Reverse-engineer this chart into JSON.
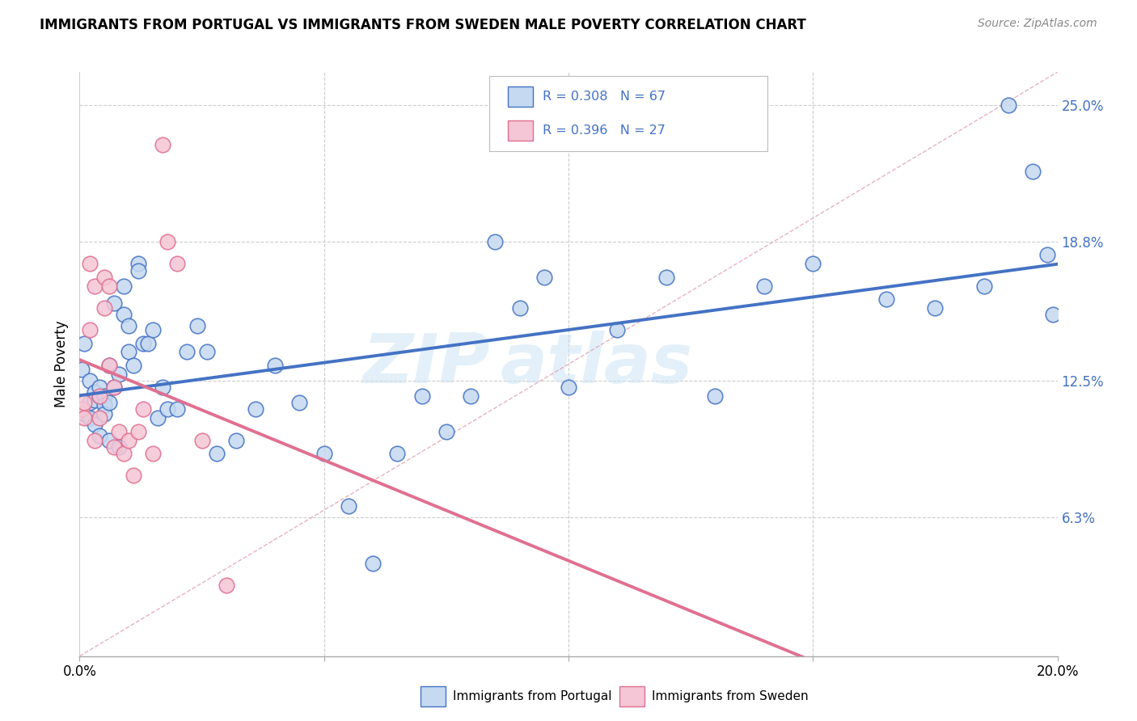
{
  "title": "IMMIGRANTS FROM PORTUGAL VS IMMIGRANTS FROM SWEDEN MALE POVERTY CORRELATION CHART",
  "source": "Source: ZipAtlas.com",
  "ylabel": "Male Poverty",
  "xlim": [
    0.0,
    0.2
  ],
  "ylim": [
    0.0,
    0.265
  ],
  "ytick_labels": [
    "6.3%",
    "12.5%",
    "18.8%",
    "25.0%"
  ],
  "ytick_positions": [
    0.063,
    0.125,
    0.188,
    0.25
  ],
  "legend_r1": "0.308",
  "legend_n1": "67",
  "legend_r2": "0.396",
  "legend_n2": "27",
  "legend_label1": "Immigrants from Portugal",
  "legend_label2": "Immigrants from Sweden",
  "color_portugal": "#c5d9f0",
  "color_sweden": "#f5c6d5",
  "color_line_portugal": "#4472c4",
  "color_line_sweden": "#e07090",
  "color_text_blue": "#4472c4",
  "watermark_zip": "ZIP",
  "watermark_atlas": "atlas",
  "scatter_portugal_x": [
    0.0005,
    0.001,
    0.001,
    0.002,
    0.002,
    0.002,
    0.003,
    0.003,
    0.003,
    0.004,
    0.004,
    0.004,
    0.005,
    0.005,
    0.005,
    0.006,
    0.006,
    0.006,
    0.007,
    0.007,
    0.008,
    0.008,
    0.009,
    0.009,
    0.01,
    0.01,
    0.011,
    0.012,
    0.012,
    0.013,
    0.014,
    0.015,
    0.016,
    0.017,
    0.018,
    0.02,
    0.022,
    0.024,
    0.026,
    0.028,
    0.032,
    0.036,
    0.04,
    0.045,
    0.05,
    0.055,
    0.06,
    0.065,
    0.07,
    0.075,
    0.08,
    0.085,
    0.09,
    0.095,
    0.1,
    0.11,
    0.12,
    0.13,
    0.14,
    0.15,
    0.165,
    0.175,
    0.185,
    0.19,
    0.195,
    0.198,
    0.199
  ],
  "scatter_portugal_y": [
    0.13,
    0.142,
    0.11,
    0.125,
    0.115,
    0.108,
    0.12,
    0.116,
    0.105,
    0.118,
    0.122,
    0.1,
    0.118,
    0.114,
    0.11,
    0.132,
    0.115,
    0.098,
    0.16,
    0.122,
    0.095,
    0.128,
    0.168,
    0.155,
    0.138,
    0.15,
    0.132,
    0.178,
    0.175,
    0.142,
    0.142,
    0.148,
    0.108,
    0.122,
    0.112,
    0.112,
    0.138,
    0.15,
    0.138,
    0.092,
    0.098,
    0.112,
    0.132,
    0.115,
    0.092,
    0.068,
    0.042,
    0.092,
    0.118,
    0.102,
    0.118,
    0.188,
    0.158,
    0.172,
    0.122,
    0.148,
    0.172,
    0.118,
    0.168,
    0.178,
    0.162,
    0.158,
    0.168,
    0.25,
    0.22,
    0.182,
    0.155
  ],
  "scatter_sweden_x": [
    0.0005,
    0.001,
    0.001,
    0.002,
    0.002,
    0.003,
    0.003,
    0.004,
    0.004,
    0.005,
    0.005,
    0.006,
    0.006,
    0.007,
    0.007,
    0.008,
    0.009,
    0.01,
    0.011,
    0.012,
    0.013,
    0.015,
    0.017,
    0.018,
    0.02,
    0.025,
    0.03
  ],
  "scatter_sweden_y": [
    0.112,
    0.108,
    0.115,
    0.178,
    0.148,
    0.168,
    0.098,
    0.118,
    0.108,
    0.172,
    0.158,
    0.168,
    0.132,
    0.122,
    0.095,
    0.102,
    0.092,
    0.098,
    0.082,
    0.102,
    0.112,
    0.092,
    0.232,
    0.188,
    0.178,
    0.098,
    0.032
  ],
  "diag_line_x": [
    0.0,
    0.2
  ],
  "diag_line_y": [
    0.0,
    0.265
  ]
}
